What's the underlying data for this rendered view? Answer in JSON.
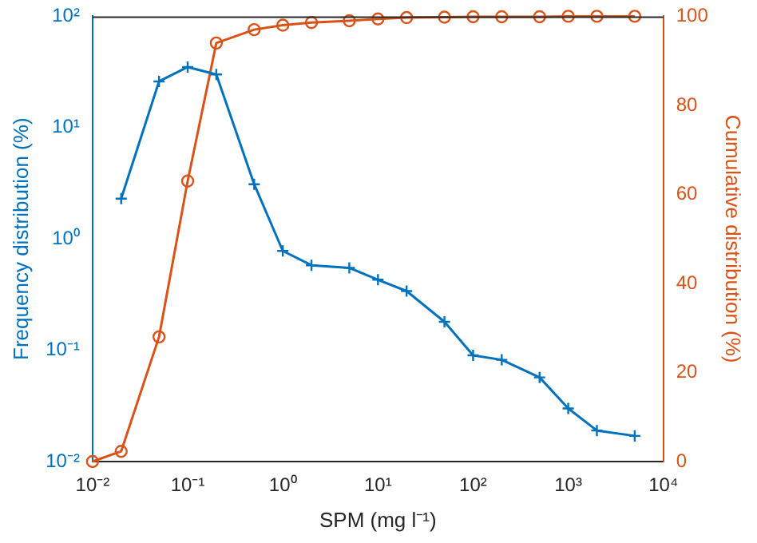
{
  "chart_data": {
    "type": "line",
    "xlabel": "SPM (mg l⁻¹)",
    "ylabel": "Frequency distribution (%)",
    "y2label": "Cumulative distribution (%)",
    "log": "xy",
    "grid": false,
    "legend": false,
    "line_style": "solid",
    "xlim": [
      0.01,
      10000
    ],
    "xticks": [
      {
        "value": 0.01,
        "label": "10⁻²"
      },
      {
        "value": 0.1,
        "label": "10⁻¹"
      },
      {
        "value": 1,
        "label": "10⁰"
      },
      {
        "value": 10,
        "label": "10¹"
      },
      {
        "value": 100,
        "label": "10²"
      },
      {
        "value": 1000,
        "label": "10³"
      },
      {
        "value": 10000,
        "label": "10⁴"
      }
    ],
    "ylim": [
      0.01,
      100
    ],
    "yticks": [
      {
        "value": 0.01,
        "label": "10⁻²"
      },
      {
        "value": 0.1,
        "label": "10⁻¹"
      },
      {
        "value": 1,
        "label": "10⁰"
      },
      {
        "value": 10,
        "label": "10¹"
      },
      {
        "value": 100,
        "label": "10²"
      }
    ],
    "y2lim": [
      0,
      100
    ],
    "y2ticks": [
      0,
      20,
      40,
      60,
      80,
      100
    ],
    "series": [
      {
        "color": "#0072bd",
        "marker": "cross",
        "x": [
          0.02,
          0.05,
          0.1,
          0.2,
          0.5,
          1,
          2,
          5,
          10,
          20,
          50,
          100,
          200,
          500,
          1000,
          2000,
          5000
        ],
        "values": [
          2.3,
          26,
          35,
          30,
          3.1,
          0.78,
          0.58,
          0.55,
          0.43,
          0.34,
          0.18,
          0.09,
          0.082,
          0.057,
          0.03,
          0.019,
          0.017
        ]
      },
      {
        "color": "#d95319",
        "marker": "circle",
        "axis": "y2",
        "x": [
          0.01,
          0.02,
          0.05,
          0.1,
          0.2,
          0.5,
          1,
          2,
          5,
          10,
          20,
          50,
          100,
          200,
          500,
          1000,
          2000,
          5000
        ],
        "values": [
          0,
          2.3,
          28,
          63,
          94,
          97,
          98,
          98.6,
          99,
          99.4,
          99.7,
          99.8,
          99.9,
          99.9,
          99.9,
          100,
          100,
          100
        ]
      }
    ]
  }
}
